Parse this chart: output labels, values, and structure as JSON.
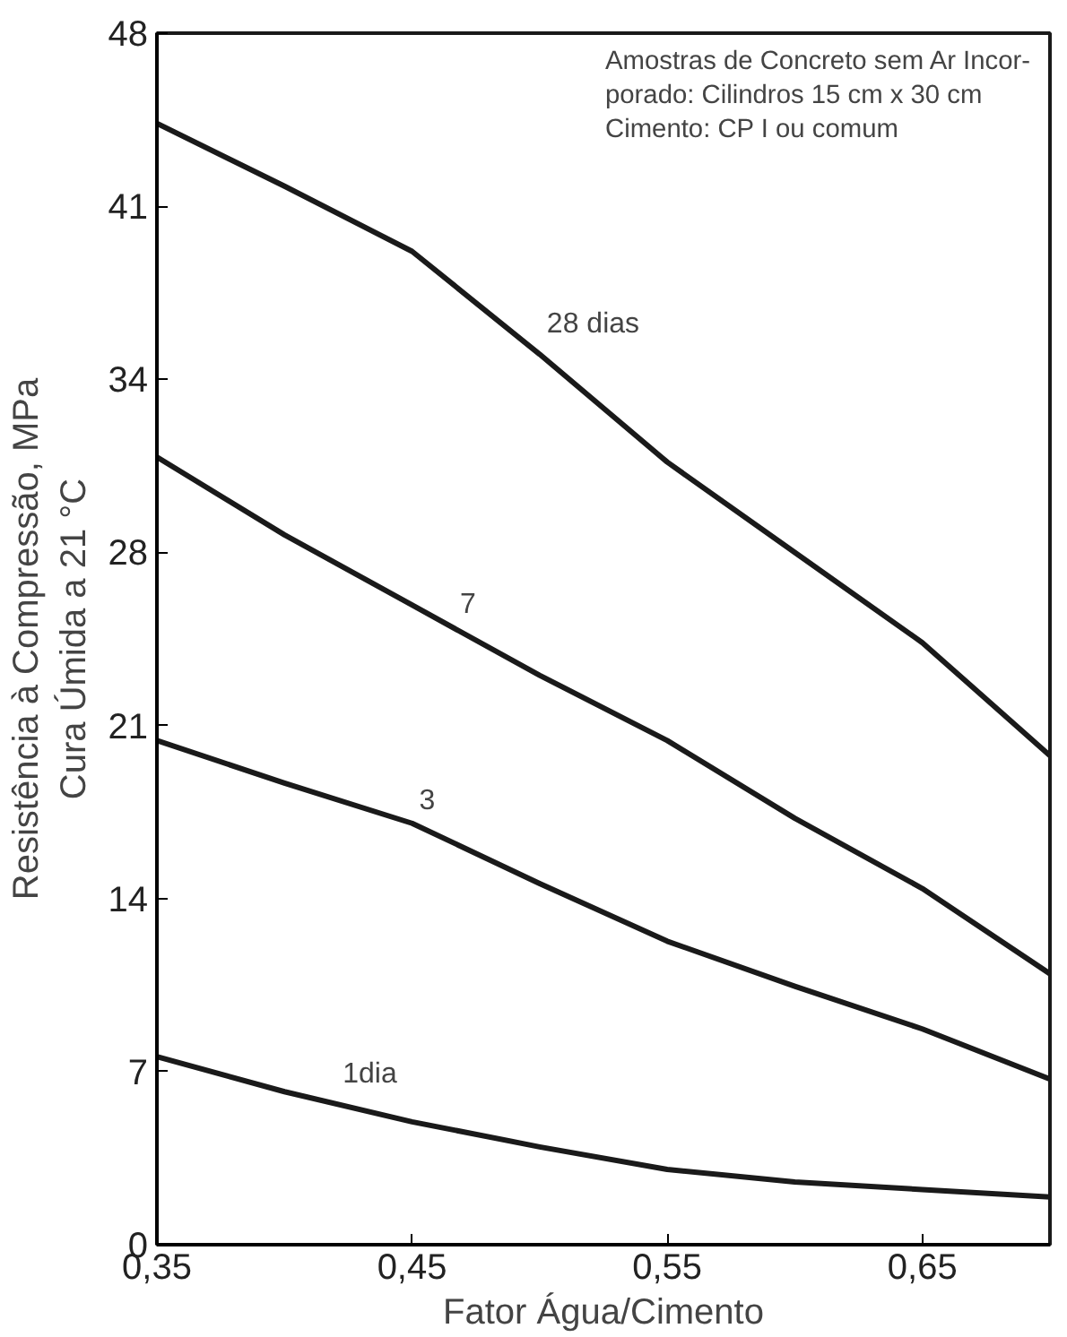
{
  "chart_data": {
    "type": "line",
    "xlabel": "Fator Água/Cimento",
    "ylabel": "Resistência à Compressão, MPa\nCura Úmida a 21 °C",
    "x": [
      0.35,
      0.4,
      0.45,
      0.5,
      0.55,
      0.6,
      0.65,
      0.7
    ],
    "series": [
      {
        "color": "#1a1a1a",
        "values": [
          44.7,
          42.2,
          39.6,
          35.5,
          31.2,
          27.6,
          24.0,
          19.5
        ]
      },
      {
        "color": "#1a1a1a",
        "values": [
          31.4,
          28.3,
          25.5,
          22.7,
          20.1,
          17.0,
          14.2,
          10.8
        ]
      },
      {
        "color": "#1a1a1a",
        "values": [
          20.1,
          18.4,
          16.8,
          14.4,
          12.1,
          10.3,
          8.6,
          6.6
        ]
      },
      {
        "color": "#1a1a1a",
        "values": [
          7.5,
          6.1,
          4.9,
          3.9,
          3.0,
          2.5,
          2.2,
          1.9
        ]
      }
    ],
    "xlim": [
      0.35,
      0.7
    ],
    "xticks": [
      {
        "value": 0.35,
        "label": "0,35"
      },
      {
        "value": 0.45,
        "label": "0,45"
      },
      {
        "value": 0.55,
        "label": "0,55"
      },
      {
        "value": 0.65,
        "label": "0,65"
      }
    ],
    "ylim": [
      0,
      48.3
    ],
    "yticks": [
      0,
      {
        "value": 6.9,
        "label": "7"
      },
      {
        "value": 13.8,
        "label": "14"
      },
      {
        "value": 20.7,
        "label": "21"
      },
      {
        "value": 27.6,
        "label": "28"
      },
      {
        "value": 34.5,
        "label": "34"
      },
      {
        "value": 41.4,
        "label": "41"
      },
      {
        "value": 48.3,
        "label": "48"
      }
    ],
    "annotations": [
      "Amostras de Concreto sem Ar Incor-\nporado: Cilindros 15 cm x 30 cm\n        Cimento: CP I ou comum",
      {
        "text": "28 dias",
        "x": 0.5,
        "y": 35.5
      },
      {
        "text": "7",
        "x": 0.466,
        "y": 24.6
      },
      {
        "text": "3",
        "x": 0.45,
        "y": 16.8
      },
      {
        "text": "1dia",
        "x": 0.42,
        "y": 5.6
      }
    ],
    "grid": false,
    "marker": "none",
    "line_style": "solid"
  }
}
